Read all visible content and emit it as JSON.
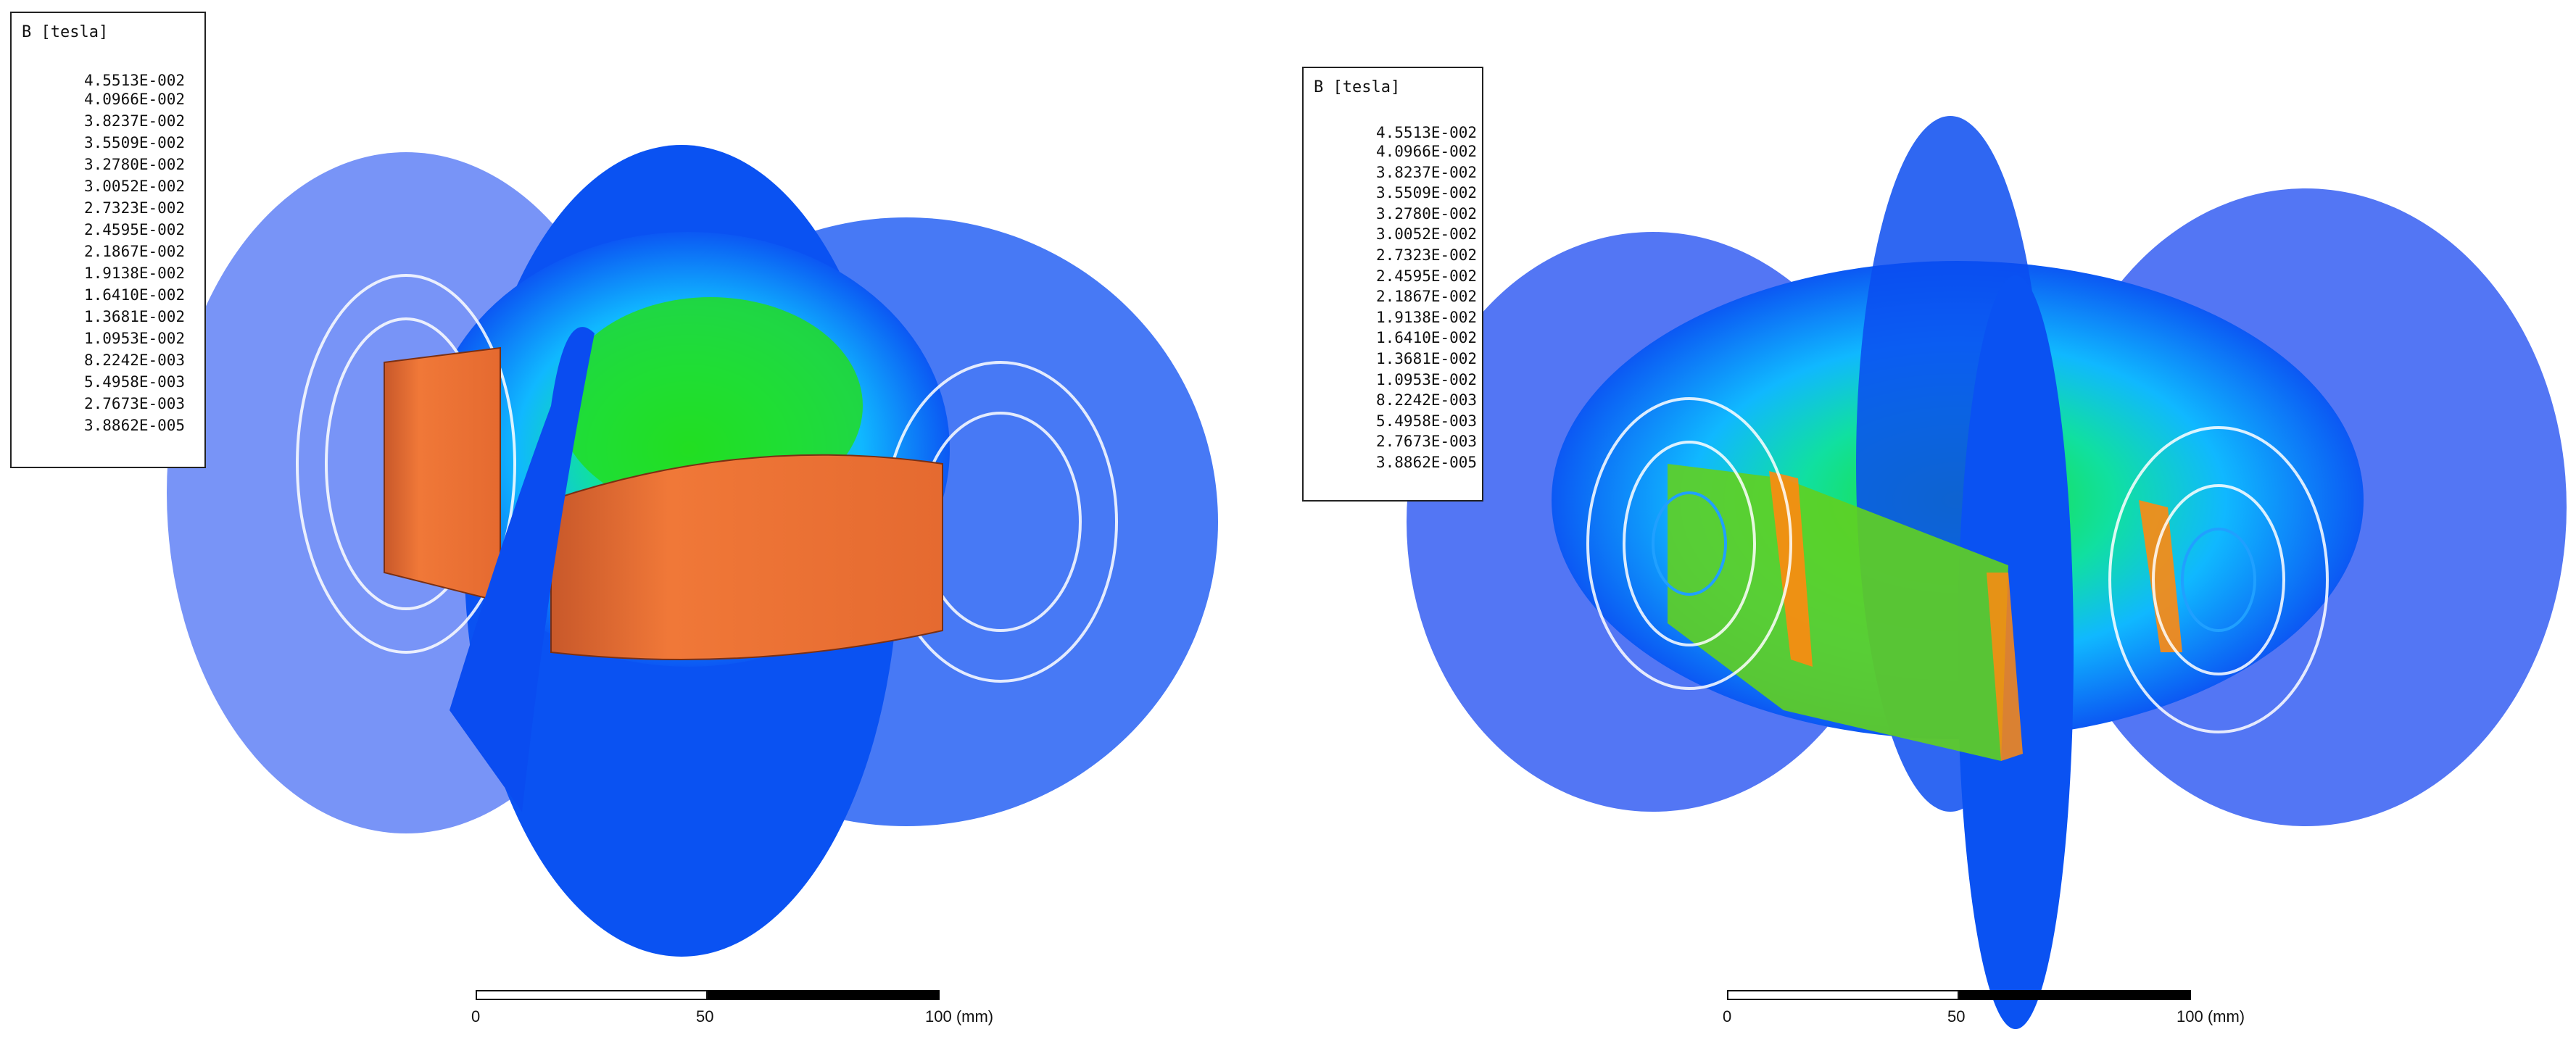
{
  "left_view": {
    "legend": {
      "title": "B [tesla]",
      "ticks": [
        "4.5513E-002",
        "4.0966E-002",
        "3.8237E-002",
        "3.5509E-002",
        "3.2780E-002",
        "3.0052E-002",
        "2.7323E-002",
        "2.4595E-002",
        "2.1867E-002",
        "1.9138E-002",
        "1.6410E-002",
        "1.3681E-002",
        "1.0953E-002",
        "8.2242E-003",
        "5.4958E-003",
        "2.7673E-003",
        "3.8862E-005"
      ]
    },
    "scale": {
      "label_start": "0",
      "label_mid": "50",
      "label_end": "100 (mm)"
    }
  },
  "right_view": {
    "legend": {
      "title": "B [tesla]",
      "ticks": [
        "4.5513E-002",
        "4.0966E-002",
        "3.8237E-002",
        "3.5509E-002",
        "3.2780E-002",
        "3.0052E-002",
        "2.7323E-002",
        "2.4595E-002",
        "2.1867E-002",
        "1.9138E-002",
        "1.6410E-002",
        "1.3681E-002",
        "1.0953E-002",
        "8.2242E-003",
        "5.4958E-003",
        "2.7673E-003",
        "3.8862E-005"
      ]
    },
    "scale": {
      "label_start": "0",
      "label_mid": "50",
      "label_end": "100 (mm)"
    }
  },
  "colors": {
    "field_low": "#0a3cf0",
    "field_mid": "#18e028",
    "field_high": "#ff2010",
    "magnet": "#ef7038"
  }
}
